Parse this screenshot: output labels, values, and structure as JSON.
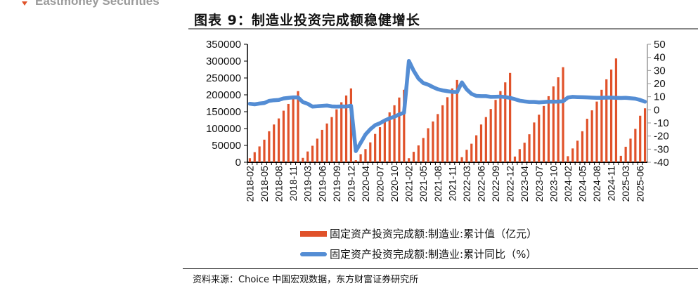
{
  "header": {
    "brand": "Eastmoney Securities",
    "title": "图表 9：制造业投资完成额稳健增长"
  },
  "colors": {
    "bar": "#e0522a",
    "line": "#548dd4",
    "brand_accent": "#e0522a"
  },
  "source": "资料来源：Choice 中国宏观数据，东方财富证券研究所",
  "chart_data": {
    "type": "bar+line",
    "title": "",
    "grid": false,
    "legend_position": "bottom",
    "y_left": {
      "range": [
        0,
        350000
      ],
      "ticks": [
        "0",
        "50000",
        "100000",
        "150000",
        "200000",
        "250000",
        "300000",
        "350000"
      ]
    },
    "y_right": {
      "range": [
        -40,
        50
      ],
      "ticks": [
        "-40",
        "-30",
        "-20",
        "-10",
        "0",
        "10",
        "20",
        "30",
        "40",
        "50"
      ]
    },
    "categories": [
      "2018-02",
      "2018-03",
      "2018-04",
      "2018-05",
      "2018-06",
      "2018-07",
      "2018-08",
      "2018-09",
      "2018-10",
      "2018-11",
      "2018-12",
      "2019-02",
      "2019-03",
      "2019-04",
      "2019-05",
      "2019-06",
      "2019-07",
      "2019-08",
      "2019-09",
      "2019-10",
      "2019-11",
      "2019-12",
      "2020-02",
      "2020-03",
      "2020-04",
      "2020-05",
      "2020-06",
      "2020-07",
      "2020-08",
      "2020-09",
      "2020-10",
      "2020-11",
      "2020-12",
      "2021-02",
      "2021-03",
      "2021-04",
      "2021-05",
      "2021-06",
      "2021-07",
      "2021-08",
      "2021-09",
      "2021-10",
      "2021-11",
      "2021-12",
      "2022-02",
      "2022-03",
      "2022-04",
      "2022-05",
      "2022-06",
      "2022-07",
      "2022-08",
      "2022-09",
      "2022-10",
      "2022-11",
      "2022-12",
      "2023-02",
      "2023-03",
      "2023-04",
      "2023-05",
      "2023-06",
      "2023-07",
      "2023-08",
      "2023-09",
      "2023-10",
      "2023-11",
      "2023-12",
      "2024-02",
      "2024-03",
      "2024-04",
      "2024-05",
      "2024-06",
      "2024-07",
      "2024-08",
      "2024-09",
      "2024-10",
      "2024-11",
      "2024-12",
      "2025-02",
      "2025-03",
      "2025-04",
      "2025-05",
      "2025-06",
      "2025-07"
    ],
    "tick_label_every": 3,
    "series": [
      {
        "name": "固定资产投资完成额:制造业:累计值（亿元）",
        "type": "bar",
        "axis": "left",
        "values": [
          12000,
          30000,
          47000,
          67000,
          92000,
          112000,
          130000,
          153000,
          173000,
          190000,
          211000,
          13000,
          32000,
          49000,
          70000,
          96000,
          115000,
          134000,
          157000,
          178000,
          198000,
          219000,
          6000,
          24000,
          39000,
          59000,
          84000,
          104000,
          121000,
          148000,
          169000,
          192000,
          215000,
          12000,
          31000,
          50000,
          72000,
          101000,
          121000,
          143000,
          169000,
          193000,
          219000,
          244000,
          15000,
          37000,
          55000,
          80000,
          112000,
          134000,
          158000,
          185000,
          211000,
          237000,
          265000,
          17000,
          39000,
          58000,
          83000,
          118000,
          141000,
          167000,
          196000,
          225000,
          252000,
          282000,
          18000,
          41000,
          64000,
          92000,
          129000,
          154000,
          180000,
          215000,
          246000,
          275000,
          308000,
          19000,
          46000,
          70000,
          99000,
          138000,
          160000
        ]
      },
      {
        "name": "固定资产投资完成额:制造业:累计同比（%）",
        "type": "line",
        "axis": "right",
        "values": [
          4.6,
          4.2,
          4.8,
          5.2,
          6.8,
          7.3,
          7.5,
          8.7,
          9.1,
          9.5,
          9.5,
          5.9,
          4.6,
          2.5,
          2.7,
          3.0,
          3.3,
          2.6,
          2.5,
          2.6,
          2.5,
          3.1,
          -31.5,
          -25.2,
          -18.8,
          -14.8,
          -11.7,
          -10.2,
          -8.1,
          -6.5,
          -5.3,
          -3.5,
          -2.2,
          37.3,
          29.8,
          23.8,
          20.4,
          19.2,
          17.3,
          15.7,
          14.8,
          14.2,
          13.7,
          13.5,
          20.9,
          15.6,
          12.2,
          10.6,
          10.4,
          10.4,
          9.9,
          10.0,
          10.1,
          9.7,
          9.1,
          8.1,
          7.0,
          6.4,
          6.0,
          6.0,
          5.7,
          5.9,
          6.2,
          6.2,
          6.3,
          6.5,
          9.4,
          9.9,
          9.7,
          9.6,
          9.5,
          9.3,
          9.1,
          9.2,
          9.3,
          9.3,
          9.2,
          9.0,
          9.1,
          8.8,
          8.5,
          7.5,
          6.2
        ]
      }
    ]
  }
}
